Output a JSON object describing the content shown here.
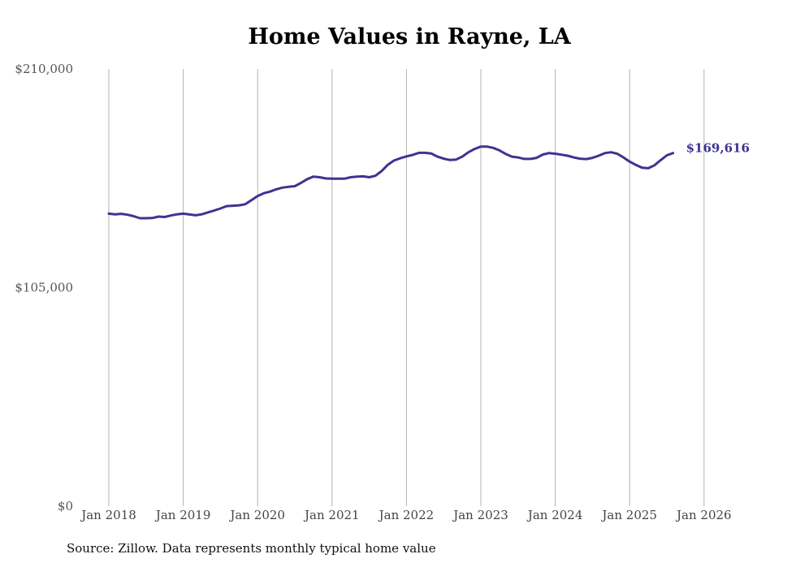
{
  "chart_data": {
    "type": "line",
    "title": "Home Values in Rayne, LA",
    "xlabel": "",
    "ylabel": "",
    "ylim": [
      0,
      210000
    ],
    "y_tick_labels": [
      "$210,000",
      "$105,000",
      "$0"
    ],
    "y_tick_values": [
      210000,
      105000,
      0
    ],
    "x_tick_labels": [
      "Jan 2018",
      "Jan 2019",
      "Jan 2020",
      "Jan 2021",
      "Jan 2022",
      "Jan 2023",
      "Jan 2024",
      "Jan 2025",
      "Jan 2026"
    ],
    "x_start": 2018.0,
    "x_step_years": 0.083333,
    "grid": "vertical",
    "line_color": "#3d3490",
    "series": [
      {
        "name": "Typical home value",
        "values": [
          140500,
          140200,
          140400,
          140000,
          139300,
          138300,
          138300,
          138400,
          139100,
          138900,
          139600,
          140200,
          140500,
          140100,
          139700,
          140200,
          141100,
          142000,
          143000,
          144100,
          144300,
          144500,
          145000,
          147000,
          149000,
          150300,
          151100,
          152200,
          153000,
          153400,
          153700,
          155300,
          157100,
          158300,
          158000,
          157400,
          157300,
          157300,
          157300,
          158000,
          158300,
          158400,
          158000,
          158700,
          161000,
          164000,
          166000,
          167100,
          168000,
          168700,
          169700,
          169700,
          169400,
          167900,
          166900,
          166300,
          166500,
          167900,
          170000,
          171600,
          172700,
          172700,
          172100,
          170900,
          169200,
          167900,
          167500,
          166800,
          166800,
          167300,
          168900,
          169600,
          169300,
          168800,
          168300,
          167500,
          166900,
          166700,
          167300,
          168300,
          169600,
          170000,
          169300,
          167500,
          165500,
          163900,
          162600,
          162300,
          163700,
          166200,
          168500,
          169616
        ]
      }
    ],
    "end_label": "$169,616"
  },
  "source_note": "Source: Zillow. Data represents monthly typical home value"
}
